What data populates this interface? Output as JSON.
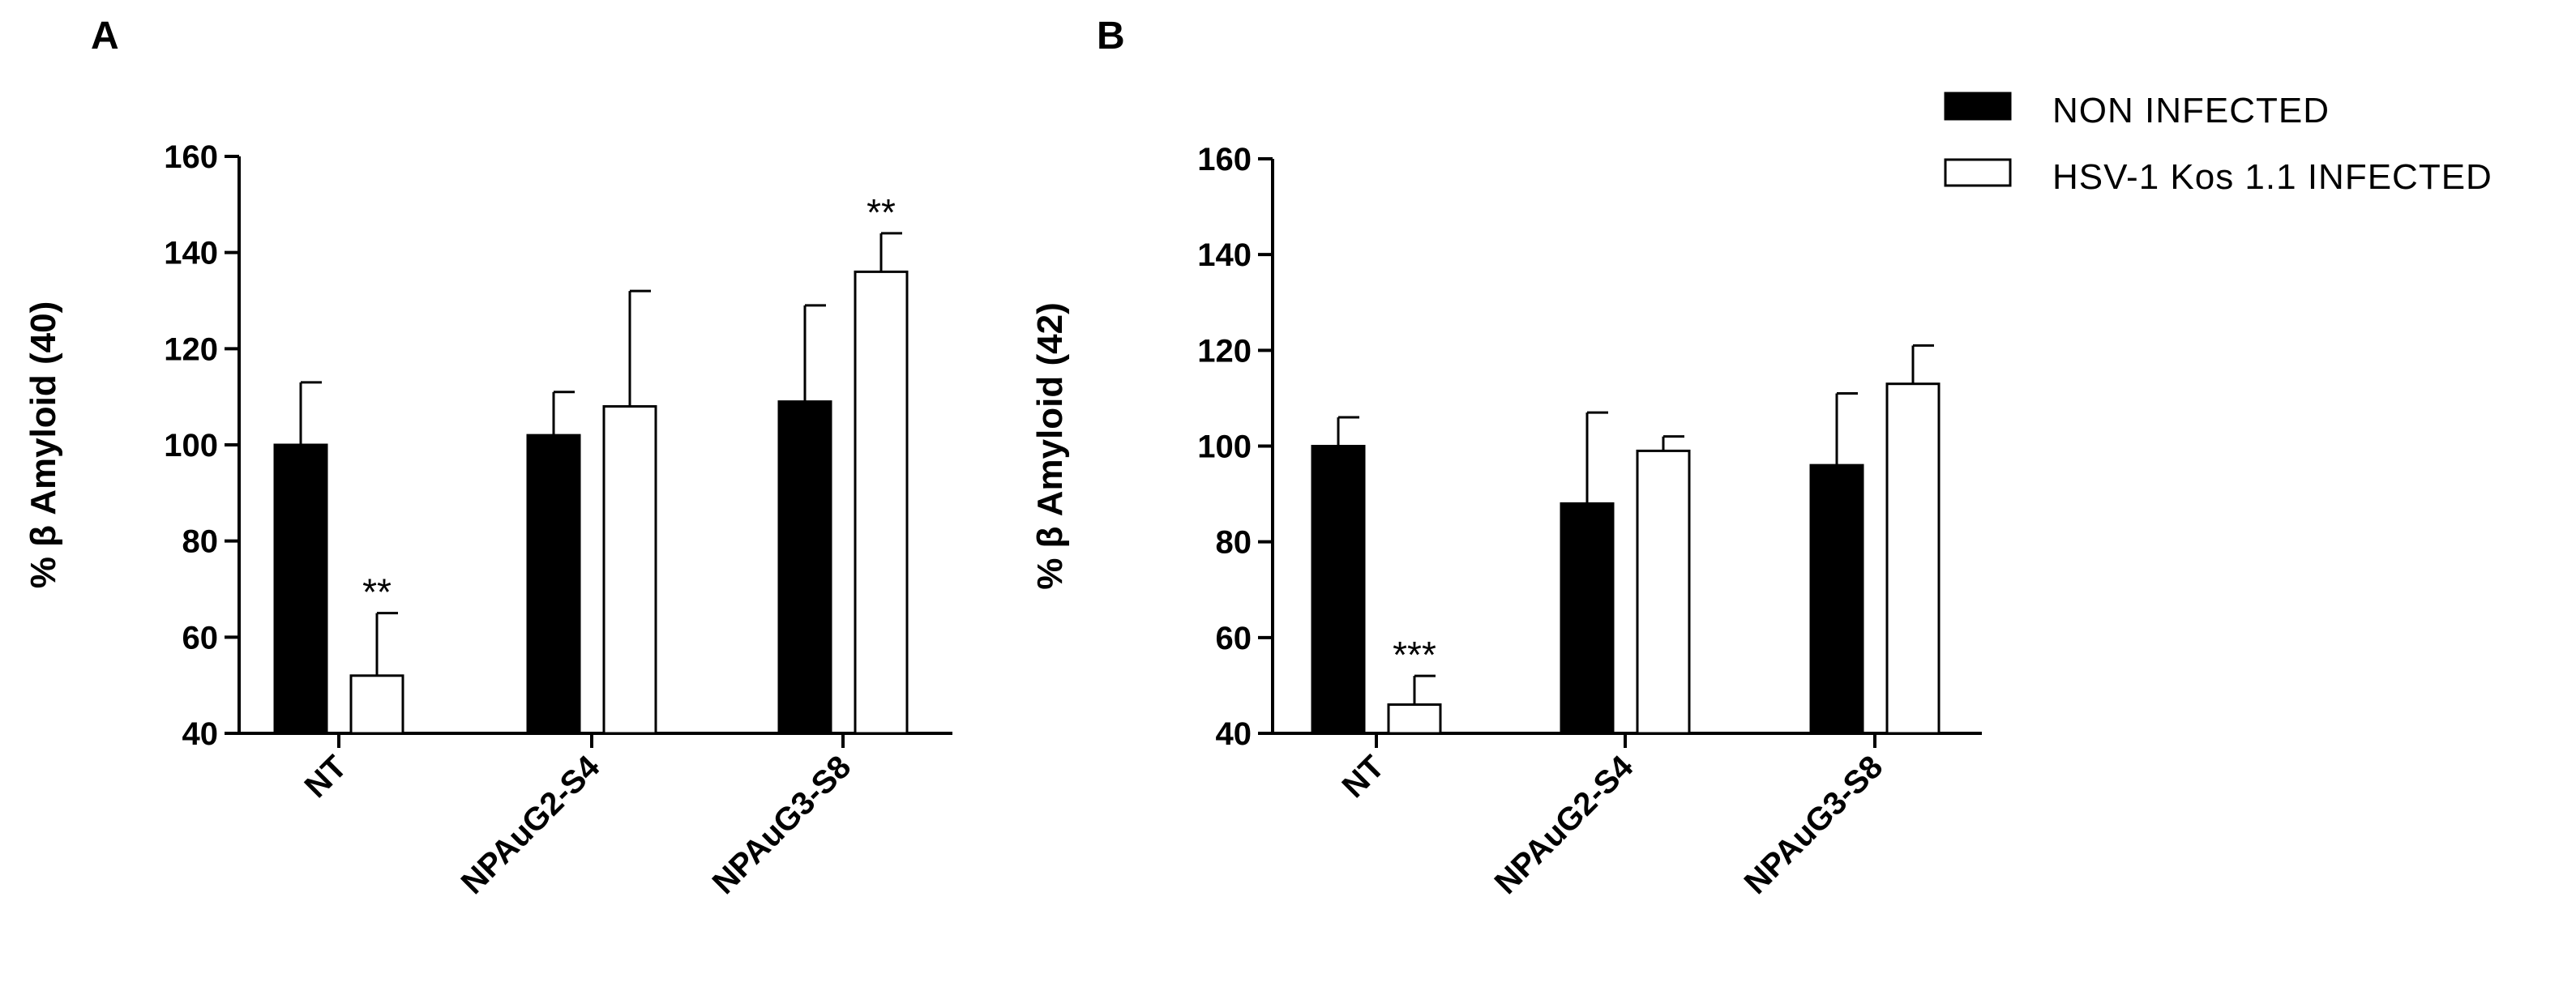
{
  "legend": [
    {
      "label": "NON INFECTED",
      "color": "#000000"
    },
    {
      "label": "HSV-1 Kos 1.1 INFECTED",
      "color": "#ffffff"
    }
  ],
  "chart_data": [
    {
      "type": "bar",
      "panel": "A",
      "ylabel": "% β Amyloid (40)",
      "ylim": [
        40,
        160
      ],
      "yticks": [
        40,
        60,
        80,
        100,
        120,
        140,
        160
      ],
      "categories": [
        "NT",
        "NPAuG2-S4",
        "NPAuG3-S8"
      ],
      "series": [
        {
          "name": "NON INFECTED",
          "values": [
            100,
            102,
            109
          ],
          "errors": [
            13,
            9,
            20
          ],
          "significance": [
            "",
            "",
            ""
          ]
        },
        {
          "name": "HSV-1 Kos 1.1 INFECTED",
          "values": [
            52,
            108,
            136
          ],
          "errors": [
            13,
            24,
            8
          ],
          "significance": [
            "**",
            "",
            "**"
          ]
        }
      ]
    },
    {
      "type": "bar",
      "panel": "B",
      "ylabel": "% β Amyloid (42)",
      "ylim": [
        40,
        160
      ],
      "yticks": [
        40,
        60,
        80,
        100,
        120,
        140,
        160
      ],
      "categories": [
        "NT",
        "NPAuG2-S4",
        "NPAuG3-S8"
      ],
      "series": [
        {
          "name": "NON INFECTED",
          "values": [
            100,
            88,
            96
          ],
          "errors": [
            6,
            19,
            15
          ],
          "significance": [
            "",
            "",
            ""
          ]
        },
        {
          "name": "HSV-1 Kos 1.1 INFECTED",
          "values": [
            46,
            99,
            113
          ],
          "errors": [
            6,
            3,
            8
          ],
          "significance": [
            "***",
            "",
            ""
          ]
        }
      ]
    }
  ]
}
